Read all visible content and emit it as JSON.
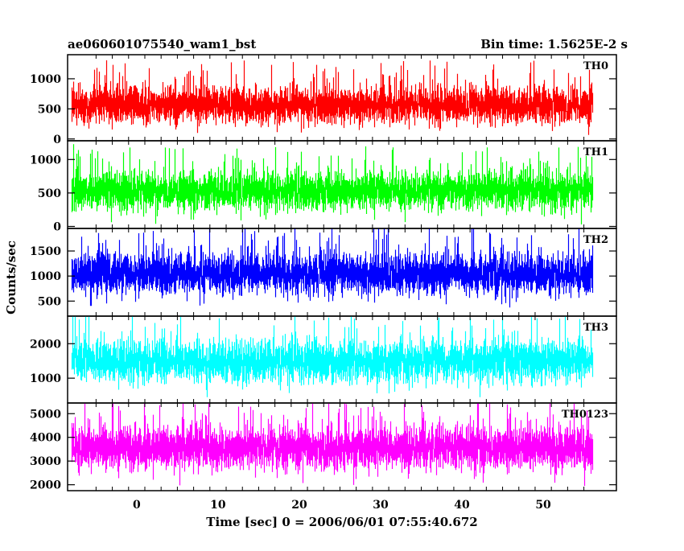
{
  "chart_data": {
    "type": "line",
    "title": "ae060601075540_wam1_bst",
    "subtitle": "Bin time: 1.5625E-2 s",
    "xlabel": "Time [sec] 0 = 2006/06/01 07:55:40.672",
    "ylabel": "Counts/sec",
    "xlim": [
      -8.5,
      59
    ],
    "x_ticks": [
      0,
      10,
      20,
      30,
      40,
      50
    ],
    "x_tick_labels": [
      "0",
      "10",
      "20",
      "30",
      "40",
      "50"
    ],
    "x_range_data": [
      -8,
      56
    ],
    "bin_time": 0.015625,
    "grid": false,
    "legend": "none",
    "panels": [
      {
        "name": "TH0",
        "color": "#ff0000",
        "ylim": [
          -30,
          1400
        ],
        "y_ticks": [
          0,
          500,
          1000
        ],
        "y_tick_labels": [
          "0",
          "500",
          "1000"
        ],
        "stats": {
          "mean": 560,
          "sd": 150,
          "min": 30,
          "max": 1400
        }
      },
      {
        "name": "TH1",
        "color": "#00ff00",
        "ylim": [
          -30,
          1280
        ],
        "y_ticks": [
          0,
          500,
          1000
        ],
        "y_tick_labels": [
          "0",
          "500",
          "1000"
        ],
        "stats": {
          "mean": 530,
          "sd": 140,
          "min": 30,
          "max": 1280
        }
      },
      {
        "name": "TH2",
        "color": "#0000ff",
        "ylim": [
          200,
          1950
        ],
        "y_ticks": [
          500,
          1000,
          1500
        ],
        "y_tick_labels": [
          "500",
          "1000",
          "1500"
        ],
        "stats": {
          "mean": 1040,
          "sd": 200,
          "min": 260,
          "max": 1950
        }
      },
      {
        "name": "TH3",
        "color": "#00ffff",
        "ylim": [
          280,
          2800
        ],
        "y_ticks": [
          1000,
          2000
        ],
        "y_tick_labels": [
          "1000",
          "2000"
        ],
        "stats": {
          "mean": 1480,
          "sd": 290,
          "min": 450,
          "max": 2800
        }
      },
      {
        "name": "TH0123",
        "color": "#ff00ff",
        "ylim": [
          1750,
          5450
        ],
        "y_ticks": [
          2000,
          3000,
          4000,
          5000
        ],
        "y_tick_labels": [
          "2000",
          "3000",
          "4000",
          "5000"
        ],
        "stats": {
          "mean": 3550,
          "sd": 450,
          "min": 1950,
          "max": 5450
        }
      }
    ]
  }
}
